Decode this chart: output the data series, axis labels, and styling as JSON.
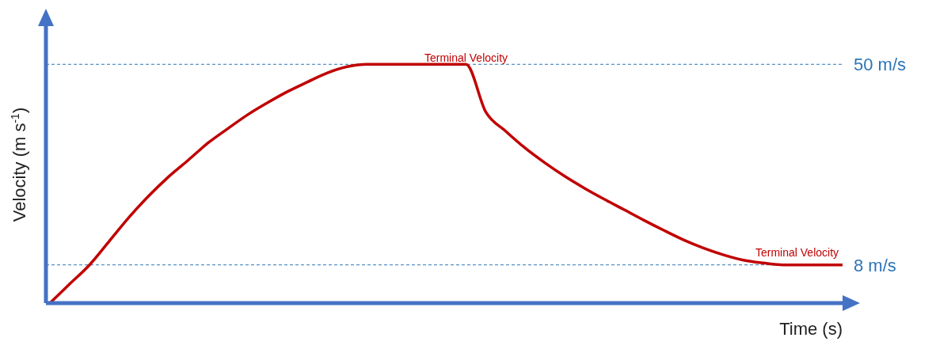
{
  "chart_data": {
    "type": "line",
    "xlabel": "Time (s)",
    "ylabel": "Velocity (m s$^{-1}$)",
    "categories": [
      null,
      null,
      null,
      null,
      null,
      null,
      null,
      null,
      null,
      null,
      null,
      null,
      null,
      null,
      null,
      null,
      null,
      null,
      null,
      null,
      null,
      null,
      null,
      null,
      null,
      null,
      null,
      null,
      null,
      null,
      null,
      null,
      null,
      null,
      null,
      null,
      null,
      null,
      null,
      null,
      null
    ],
    "series": [
      {
        "color": "#c00000",
        "values": [
          0,
          4,
          8,
          13,
          18,
          22.5,
          26.5,
          30,
          33.6,
          36.6,
          39.5,
          42,
          44.3,
          46.3,
          48.2,
          49.5,
          50,
          50,
          50,
          50,
          50,
          50,
          40,
          36,
          32.4,
          29.3,
          26.5,
          24,
          21.7,
          19.5,
          17.3,
          15.2,
          13.2,
          11.5,
          10.1,
          9,
          8.4,
          8,
          8,
          8,
          8
        ]
      }
    ],
    "ylim": [
      0,
      58
    ],
    "tick_labels": false,
    "marker": "none",
    "line_style": "solid",
    "ref_lines": [
      {
        "axis": "y",
        "value": 50,
        "label": "50 m/s",
        "color": "#2e75b6",
        "line_style": "dashed"
      },
      {
        "axis": "y",
        "value": 8,
        "label": "8 m/s",
        "color": "#2e75b6",
        "line_style": "dashed"
      }
    ],
    "annotations": [
      "Terminal Velocity",
      "Terminal Velocity"
    ]
  }
}
